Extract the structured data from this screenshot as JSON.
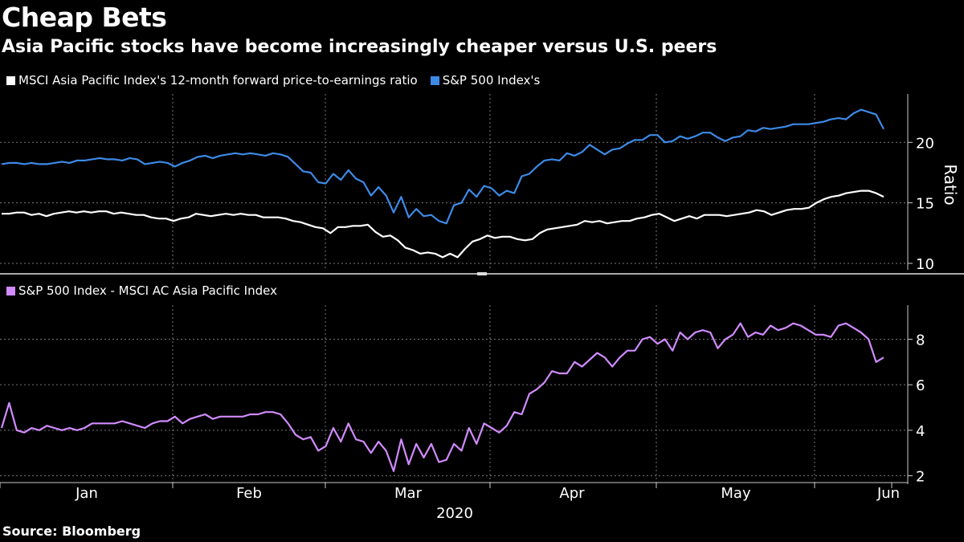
{
  "header": {
    "title": "Cheap Bets",
    "subtitle": "Asia Pacific stocks have become increasingly cheaper versus U.S. peers"
  },
  "source": "Source: Bloomberg",
  "colors": {
    "white_series": "#ffffff",
    "blue_series": "#3d8ae6",
    "purple_series": "#d18bff",
    "grid": "#777777",
    "axis": "#cccccc"
  },
  "chart_data": [
    {
      "type": "line",
      "legend": [
        "MSCI Asia Pacific Index's 12-month forward price-to-earnings ratio",
        "S&P 500 Index's"
      ],
      "ylabel": "Ratio",
      "ylim": [
        9.6,
        24
      ],
      "yticks": [
        10,
        15,
        20
      ],
      "grid": true,
      "series": [
        {
          "name": "MSCI Asia Pacific Index's 12-month forward price-to-earnings ratio",
          "values": [
            14.1,
            14.1,
            14.2,
            14.2,
            14.0,
            14.1,
            13.9,
            14.1,
            14.2,
            14.3,
            14.2,
            14.3,
            14.2,
            14.3,
            14.3,
            14.1,
            14.2,
            14.1,
            14.0,
            14.0,
            13.8,
            13.7,
            13.7,
            13.5,
            13.7,
            13.8,
            14.1,
            14.0,
            13.9,
            14.0,
            14.1,
            14.0,
            14.1,
            14.0,
            14.0,
            13.8,
            13.8,
            13.8,
            13.7,
            13.5,
            13.4,
            13.2,
            13.0,
            12.9,
            12.5,
            13.0,
            13.0,
            13.1,
            13.1,
            13.2,
            12.6,
            12.2,
            12.3,
            11.9,
            11.3,
            11.1,
            10.8,
            10.9,
            10.8,
            10.5,
            10.8,
            10.5,
            11.2,
            11.8,
            12.0,
            12.3,
            12.1,
            12.2,
            12.2,
            12.0,
            11.9,
            12.0,
            12.5,
            12.8,
            12.9,
            13.0,
            13.1,
            13.2,
            13.5,
            13.4,
            13.5,
            13.3,
            13.4,
            13.5,
            13.5,
            13.7,
            13.8,
            14.0,
            14.1,
            13.8,
            13.5,
            13.7,
            13.9,
            13.7,
            14.0,
            14.0,
            14.0,
            13.9,
            14.0,
            14.1,
            14.2,
            14.4,
            14.3,
            14.0,
            14.2,
            14.4,
            14.5,
            14.5,
            14.6,
            15.0,
            15.3,
            15.5,
            15.6,
            15.8,
            15.9,
            16.0,
            16.0,
            15.8,
            15.5
          ]
        },
        {
          "name": "S&P 500 Index's",
          "values": [
            18.2,
            18.3,
            18.3,
            18.2,
            18.3,
            18.2,
            18.2,
            18.3,
            18.4,
            18.3,
            18.5,
            18.5,
            18.6,
            18.7,
            18.6,
            18.6,
            18.5,
            18.7,
            18.6,
            18.2,
            18.3,
            18.4,
            18.3,
            18.0,
            18.3,
            18.5,
            18.8,
            18.9,
            18.7,
            18.9,
            19.0,
            19.1,
            19.0,
            19.1,
            19.0,
            18.9,
            19.1,
            19.0,
            18.8,
            18.2,
            17.6,
            17.5,
            16.7,
            16.6,
            17.4,
            16.9,
            17.7,
            17.0,
            16.7,
            15.6,
            16.3,
            15.6,
            14.2,
            15.5,
            13.8,
            14.5,
            13.9,
            14.0,
            13.5,
            13.3,
            14.8,
            15.0,
            16.1,
            15.5,
            16.4,
            16.2,
            15.6,
            16.0,
            15.8,
            17.2,
            17.4,
            18.0,
            18.5,
            18.6,
            18.5,
            19.1,
            18.9,
            19.2,
            19.8,
            19.4,
            19.0,
            19.4,
            19.5,
            19.9,
            20.2,
            20.2,
            20.6,
            20.6,
            20.0,
            20.1,
            20.5,
            20.3,
            20.5,
            20.8,
            20.8,
            20.4,
            20.1,
            20.4,
            20.5,
            21.0,
            20.9,
            21.2,
            21.1,
            21.2,
            21.3,
            21.5,
            21.5,
            21.5,
            21.6,
            21.7,
            21.9,
            22.0,
            21.9,
            22.4,
            22.7,
            22.5,
            22.3,
            21.1
          ]
        }
      ]
    },
    {
      "type": "line",
      "legend": [
        "S&P 500 Index - MSCI AC Asia Pacific Index"
      ],
      "ylim": [
        1.7,
        9.5
      ],
      "yticks": [
        2,
        4,
        6,
        8
      ],
      "grid": true,
      "xlabel": "2020",
      "xticks": [
        "Jan",
        "Feb",
        "Mar",
        "Apr",
        "May",
        "Jun"
      ],
      "series": [
        {
          "name": "S&P 500 Index - MSCI AC Asia Pacific Index",
          "values": [
            4.1,
            5.2,
            4.0,
            3.9,
            4.1,
            4.0,
            4.2,
            4.1,
            4.0,
            4.1,
            4.0,
            4.1,
            4.3,
            4.3,
            4.3,
            4.3,
            4.4,
            4.3,
            4.2,
            4.1,
            4.3,
            4.4,
            4.4,
            4.6,
            4.3,
            4.5,
            4.6,
            4.7,
            4.5,
            4.6,
            4.6,
            4.6,
            4.6,
            4.7,
            4.7,
            4.8,
            4.8,
            4.7,
            4.3,
            3.8,
            3.6,
            3.7,
            3.1,
            3.3,
            4.1,
            3.5,
            4.3,
            3.6,
            3.5,
            3.0,
            3.5,
            3.1,
            2.2,
            3.6,
            2.5,
            3.4,
            2.8,
            3.4,
            2.6,
            2.7,
            3.4,
            3.1,
            4.1,
            3.4,
            4.3,
            4.1,
            3.9,
            4.2,
            4.8,
            4.7,
            5.6,
            5.8,
            6.1,
            6.6,
            6.5,
            6.5,
            7.0,
            6.8,
            7.1,
            7.4,
            7.2,
            6.8,
            7.2,
            7.5,
            7.5,
            8.0,
            8.1,
            7.8,
            8.0,
            7.5,
            8.3,
            8.0,
            8.3,
            8.4,
            8.3,
            7.6,
            8.0,
            8.2,
            8.7,
            8.1,
            8.3,
            8.2,
            8.6,
            8.4,
            8.5,
            8.7,
            8.6,
            8.4,
            8.2,
            8.2,
            8.1,
            8.6,
            8.7,
            8.5,
            8.3,
            8.0,
            7.0,
            7.2
          ]
        }
      ]
    }
  ]
}
